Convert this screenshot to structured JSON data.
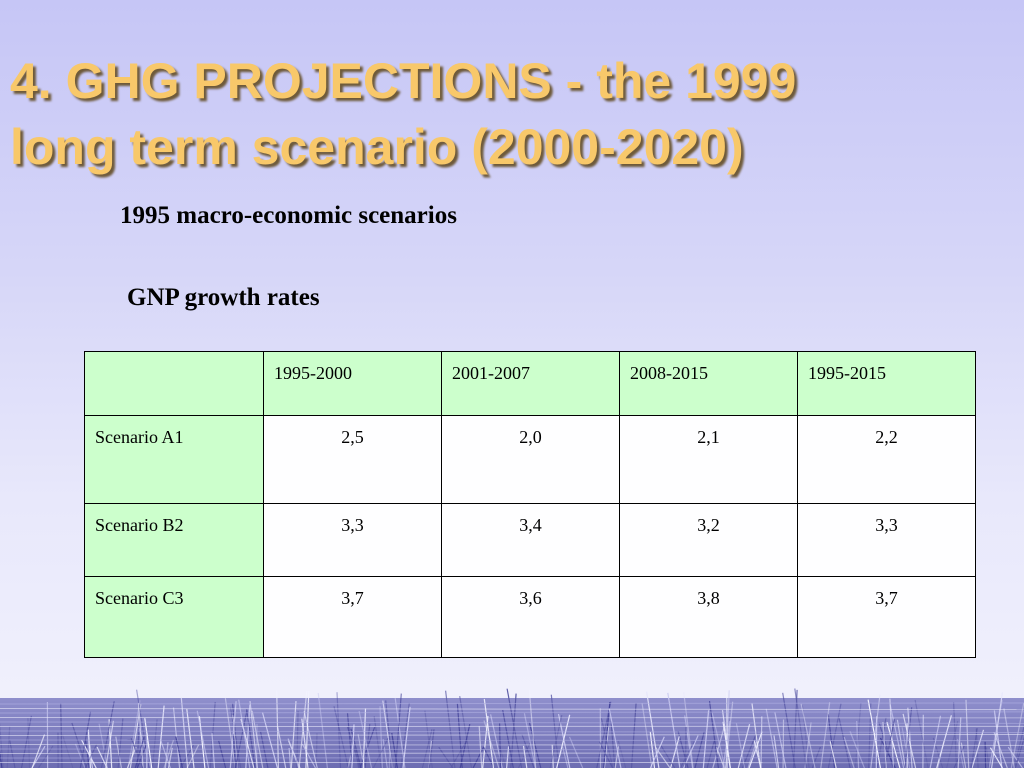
{
  "slide": {
    "title_line1": "4. GHG PROJECTIONS  - the 1999",
    "title_line2": "long term scenario (2000-2020)",
    "subtitle": "1995 macro-economic scenarios",
    "table_caption": "GNP growth rates"
  },
  "table": {
    "corner": "",
    "headers": [
      "1995-2000",
      "2001-2007",
      "2008-2015",
      "1995-2015"
    ],
    "rows": [
      {
        "label": "Scenario A1",
        "values": [
          "2,5",
          "2,0",
          "2,1",
          "2,2"
        ]
      },
      {
        "label": "Scenario B2",
        "values": [
          "3,3",
          "3,4",
          "3,2",
          "3,3"
        ]
      },
      {
        "label": "Scenario C3",
        "values": [
          "3,7",
          "3,6",
          "3,8",
          "3,7"
        ]
      }
    ]
  },
  "colors": {
    "title": "#f8c86a",
    "header_fill": "#ccffcc",
    "background": "#d6d6f8"
  }
}
